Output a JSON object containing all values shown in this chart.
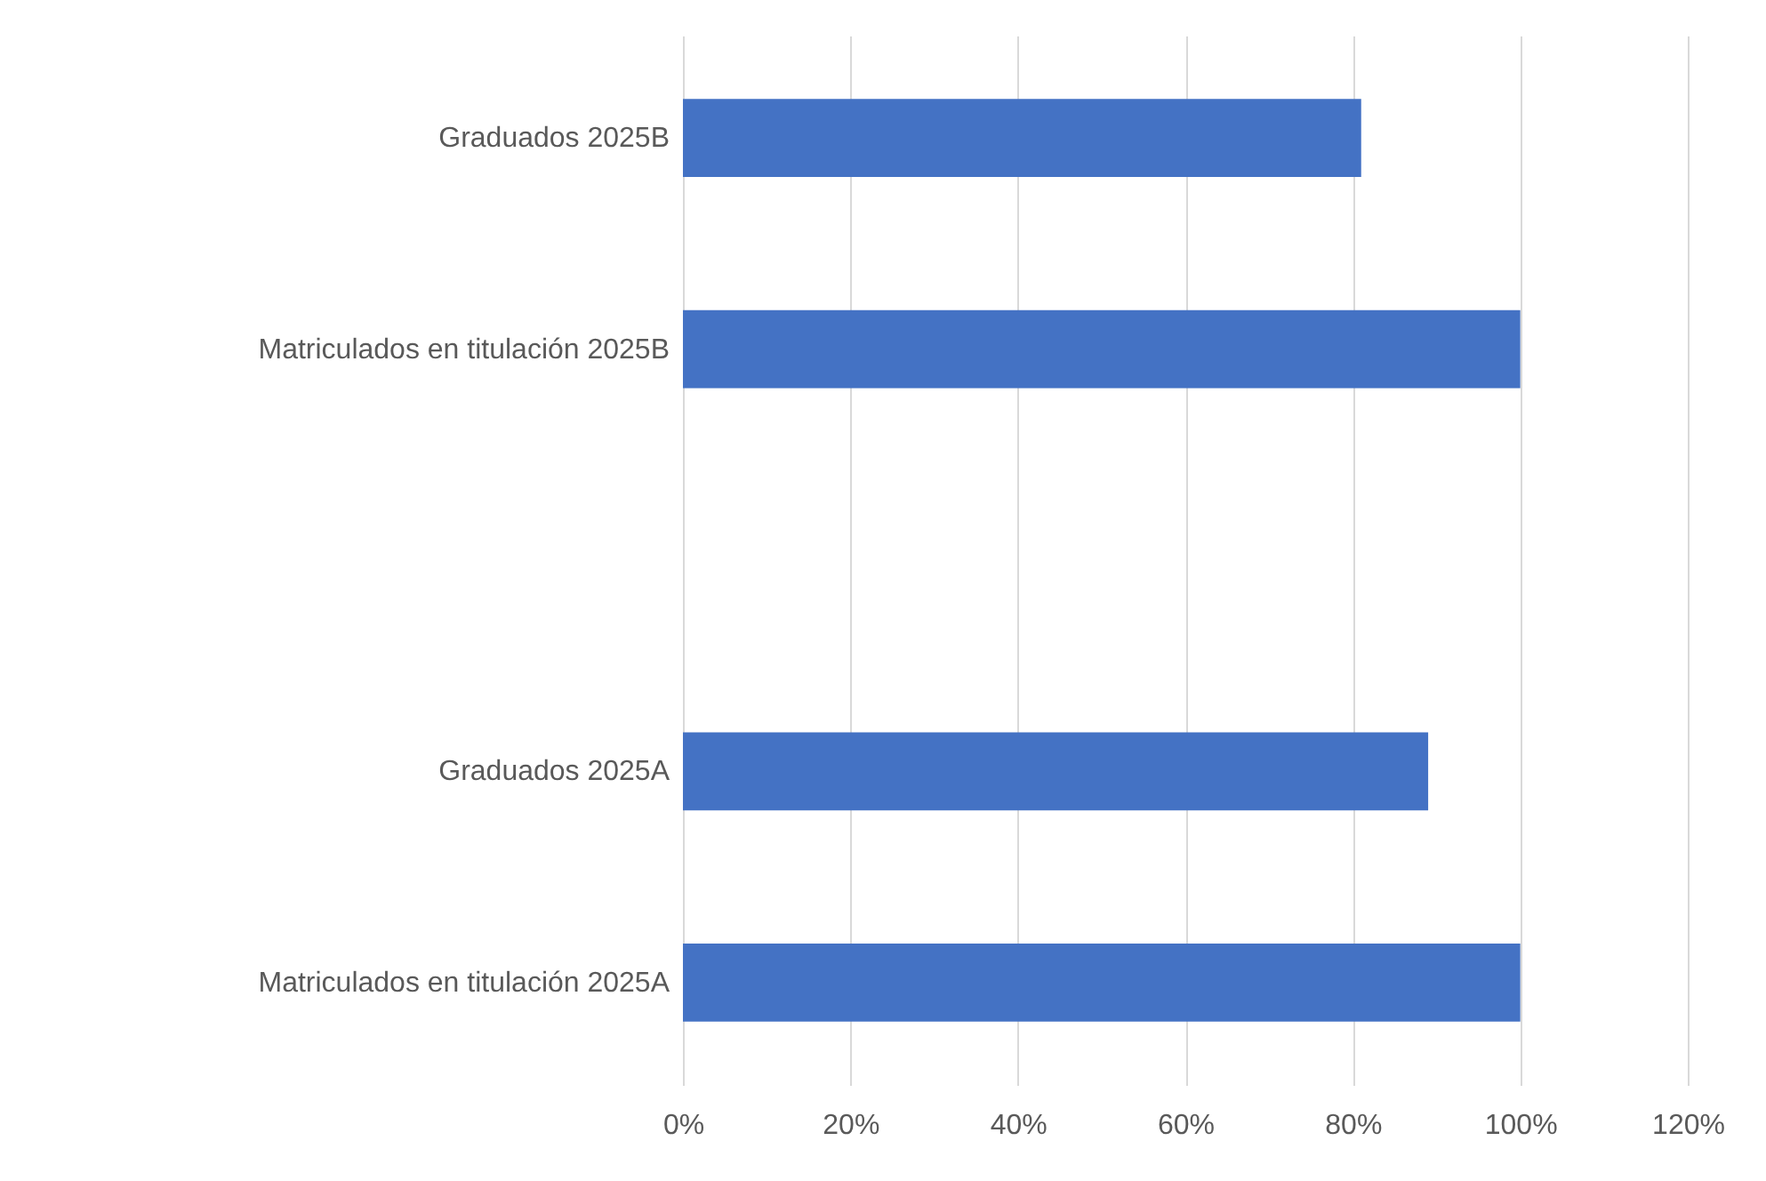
{
  "chart_data": {
    "type": "bar",
    "orientation": "horizontal",
    "categories": [
      "Graduados 2025B",
      "Matriculados en titulación 2025B",
      null,
      "Graduados 2025A",
      "Matriculados en titulación 2025A"
    ],
    "values": [
      81,
      100,
      null,
      89,
      100
    ],
    "color": "#4472c4",
    "xlim": [
      0,
      120
    ],
    "xticks": [
      {
        "value": 0,
        "label": "0%"
      },
      {
        "value": 20,
        "label": "20%"
      },
      {
        "value": 40,
        "label": "40%"
      },
      {
        "value": 60,
        "label": "60%"
      },
      {
        "value": 80,
        "label": "80%"
      },
      {
        "value": 100,
        "label": "100%"
      },
      {
        "value": 120,
        "label": "120%"
      }
    ],
    "grid": "x"
  }
}
